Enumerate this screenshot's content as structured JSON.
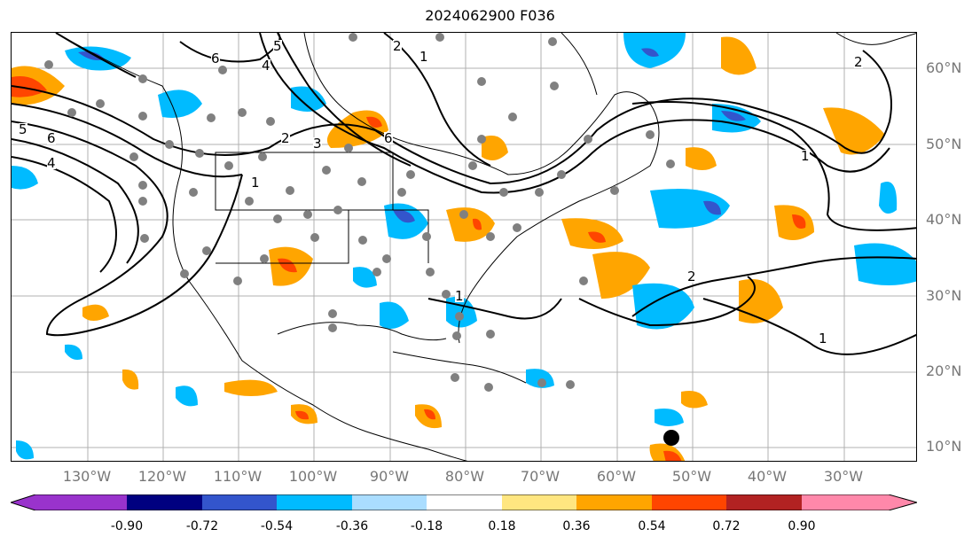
{
  "title": "2024062900 F036",
  "latitude_labels": [
    "60°N",
    "50°N",
    "40°N",
    "30°N",
    "20°N",
    "10°N"
  ],
  "longitude_labels": [
    "130°W",
    "120°W",
    "110°W",
    "100°W",
    "90°W",
    "80°W",
    "70°W",
    "60°W",
    "50°W",
    "40°W",
    "30°W"
  ],
  "contour_labels": [
    "1",
    "2",
    "3",
    "4",
    "5",
    "6",
    "1",
    "2",
    "4",
    "5",
    "6",
    "1",
    "2",
    "6",
    "1",
    "2",
    "1"
  ],
  "colorbar": {
    "ticks": [
      "-0.90",
      "-0.72",
      "-0.54",
      "-0.36",
      "-0.18",
      "0.18",
      "0.36",
      "0.54",
      "0.72",
      "0.90"
    ],
    "colors": [
      "#9933cc",
      "#000080",
      "#3355cc",
      "#00bbff",
      "#aaddff",
      "#ffffff",
      "#ffe680",
      "#ffa500",
      "#ff4500",
      "#b22222",
      "#ff88aa",
      "#ff88cc"
    ]
  },
  "field_colors": {
    "negative_light": "#00bbff",
    "negative_strong": "#3355cc",
    "positive_light": "#ffa500",
    "positive_strong": "#ff4500",
    "contour": "#000000",
    "station_dot": "#808080",
    "storm_marker": "#000000"
  }
}
